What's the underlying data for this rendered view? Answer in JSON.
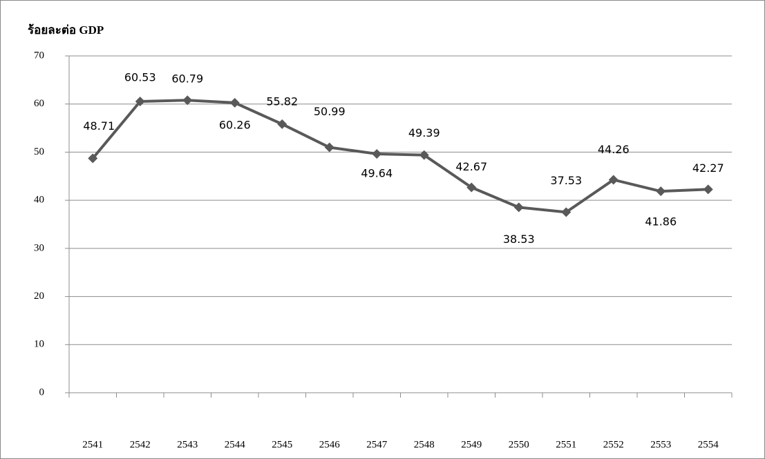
{
  "chart_data": {
    "type": "line",
    "y_label": "ร้อยละต่อ GDP",
    "categories": [
      "2541",
      "2542",
      "2543",
      "2544",
      "2545",
      "2546",
      "2547",
      "2548",
      "2549",
      "2550",
      "2551",
      "2552",
      "2553",
      "2554"
    ],
    "values": [
      48.71,
      60.53,
      60.79,
      60.26,
      55.82,
      50.99,
      49.64,
      49.39,
      42.67,
      38.53,
      37.53,
      44.26,
      41.86,
      42.27
    ],
    "color": "#595959",
    "ylim": [
      0,
      70
    ],
    "yticks": [
      0,
      10,
      20,
      30,
      40,
      50,
      60,
      70
    ],
    "grid": true
  }
}
